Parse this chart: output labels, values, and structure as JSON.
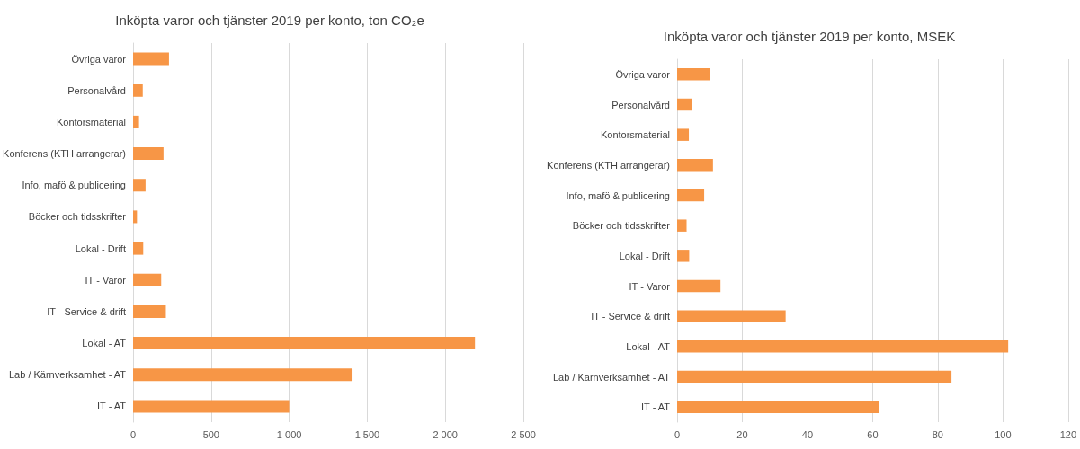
{
  "chart_data": [
    {
      "type": "bar",
      "title": "Inköpta varor och tjänster 2019 per konto, ton CO₂e",
      "orientation": "horizontal",
      "categories": [
        "Övriga varor",
        "Personalvård",
        "Kontorsmaterial",
        "Konferens (KTH arrangerar)",
        "Info, mafö & publicering",
        "Böcker och tidsskrifter",
        "Lokal - Drift",
        "IT - Varor",
        "IT - Service & drift",
        "Lokal - AT",
        "Lab / Kärnverksamhet - AT",
        "IT - AT"
      ],
      "values": [
        230,
        62,
        38,
        195,
        80,
        25,
        65,
        180,
        210,
        2190,
        1400,
        1000
      ],
      "color": "#f79646",
      "xlim": [
        0,
        2500
      ],
      "xticks": [
        0,
        500,
        {
          "value": 1000,
          "label": "1 000"
        },
        {
          "value": 1500,
          "label": "1 500"
        },
        {
          "value": 2000,
          "label": "2 000"
        },
        {
          "value": 2500,
          "label": "2 500"
        }
      ],
      "grid": "x"
    },
    {
      "type": "bar",
      "title": "Inköpta varor och tjänster 2019 per konto, MSEK",
      "orientation": "horizontal",
      "categories": [
        "Övriga varor",
        "Personalvård",
        "Kontorsmaterial",
        "Konferens (KTH arrangerar)",
        "Info, mafö & publicering",
        "Böcker och tidsskrifter",
        "Lokal - Drift",
        "IT - Varor",
        "IT - Service & drift",
        "Lokal - AT",
        "Lab / Kärnverksamhet - AT",
        "IT - AT"
      ],
      "values": [
        10.2,
        4.5,
        3.6,
        11,
        8.3,
        2.9,
        3.7,
        13.3,
        33.3,
        101.6,
        84.2,
        62
      ],
      "color": "#f79646",
      "xlim": [
        0,
        120
      ],
      "xticks": [
        0,
        20,
        40,
        60,
        80,
        100,
        120
      ],
      "grid": "x"
    }
  ]
}
